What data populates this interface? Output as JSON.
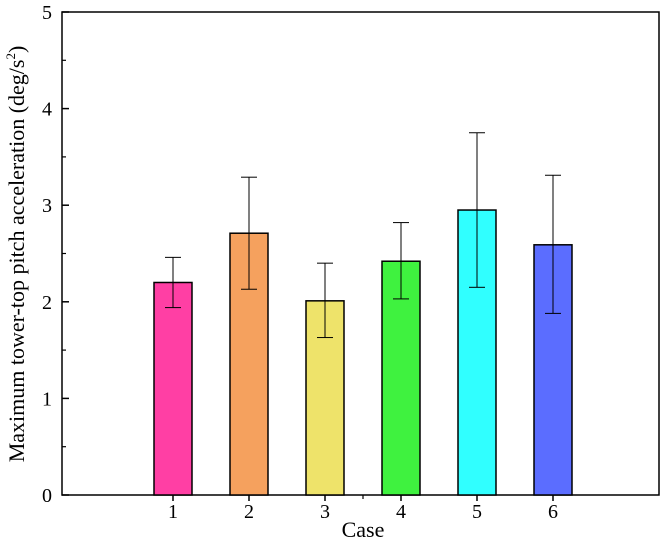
{
  "chart_data": {
    "type": "bar",
    "categories": [
      "1",
      "2",
      "3",
      "4",
      "5",
      "6"
    ],
    "values": [
      2.2,
      2.71,
      2.01,
      2.42,
      2.95,
      2.59
    ],
    "error_low": [
      1.94,
      2.13,
      1.63,
      2.03,
      2.15,
      1.88
    ],
    "error_high": [
      2.46,
      3.29,
      2.4,
      2.82,
      3.75,
      3.31
    ],
    "colors": [
      "#ff3fa4",
      "#f5a15e",
      "#eee36a",
      "#3ff23f",
      "#30ffff",
      "#5b6dff"
    ],
    "xlabel": "Case",
    "ylabel_main": "Maximum tower-top pitch acceleration (deg/s",
    "ylabel_sup": "2",
    "ylabel_close": ")",
    "ylim": [
      0,
      5
    ],
    "yticks": [
      "0",
      "1",
      "2",
      "3",
      "4",
      "5"
    ],
    "grid": false,
    "legend": "none"
  }
}
